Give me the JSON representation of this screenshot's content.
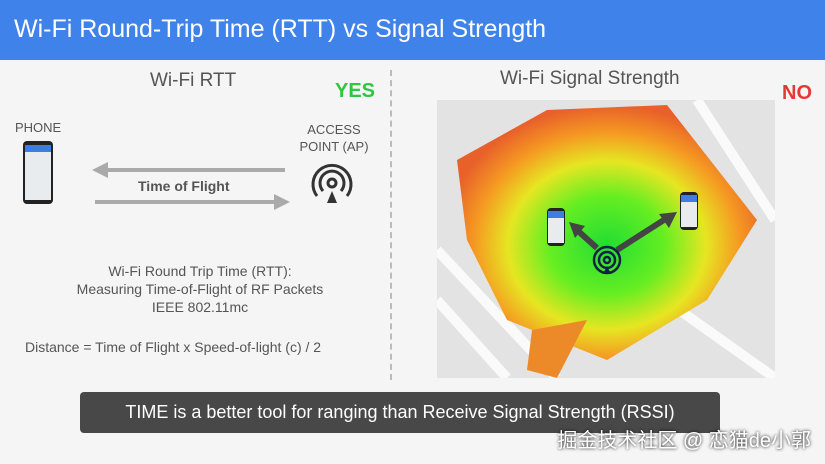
{
  "header": {
    "title": "Wi-Fi Round-Trip Time (RTT) vs Signal Strength"
  },
  "left": {
    "title": "Wi-Fi RTT",
    "verdict": "YES",
    "phone_label": "PHONE",
    "ap_label_1": "ACCESS",
    "ap_label_2": "POINT (AP)",
    "arrow_label": "Time of Flight",
    "desc_1": "Wi-Fi Round Trip Time (RTT):",
    "desc_2": "Measuring Time-of-Flight of RF Packets",
    "desc_3": "IEEE 802.11mc",
    "formula": "Distance =  Time of Flight x  Speed-of-light (c) / 2"
  },
  "right": {
    "title": "Wi-Fi Signal Strength",
    "verdict": "NO"
  },
  "colors": {
    "header": "#3f83ea",
    "yes": "#2fc742",
    "no": "#e53935"
  },
  "subtitle": "TIME is a better tool for ranging than Receive Signal Strength (RSSI)",
  "watermark": "掘金技术社区 @ 恋猫de小郭"
}
